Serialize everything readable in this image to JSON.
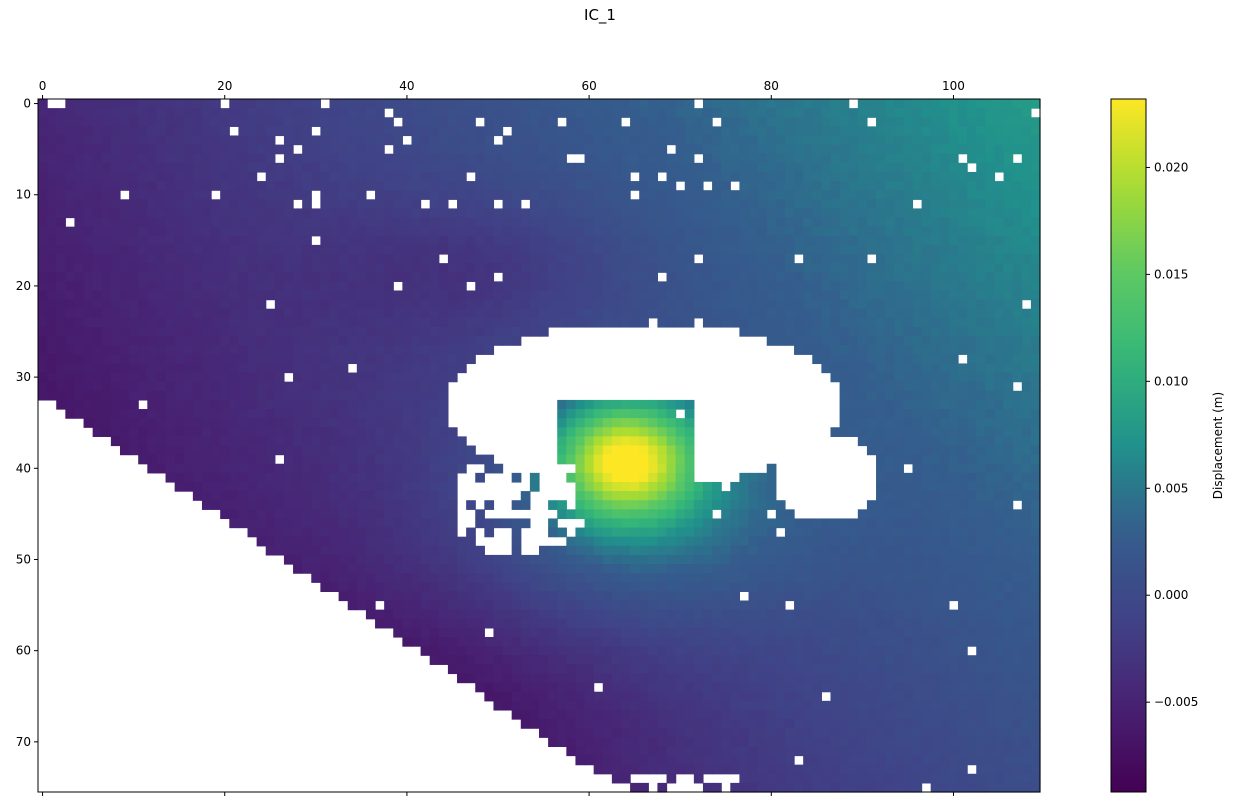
{
  "chart_data": {
    "type": "heatmap",
    "title": "IC_1",
    "xlabel": "",
    "ylabel": "",
    "x_range": [
      0,
      110
    ],
    "y_range": [
      0,
      76
    ],
    "x_ticks": [
      0,
      20,
      40,
      60,
      80,
      100
    ],
    "y_ticks": [
      0,
      10,
      20,
      30,
      40,
      50,
      60,
      70
    ],
    "x_tick_labels": [
      "0",
      "20",
      "40",
      "60",
      "80",
      "100"
    ],
    "y_tick_labels": [
      "0",
      "10",
      "20",
      "30",
      "40",
      "50",
      "60",
      "70"
    ],
    "x_axis_position": "top",
    "y_axis_inverted": true,
    "colormap": "viridis",
    "colorbar": {
      "label": "Displacement (m)",
      "range": [
        -0.0092,
        0.0232
      ],
      "ticks": [
        -0.005,
        0.0,
        0.005,
        0.01,
        0.015,
        0.02
      ],
      "tick_labels": [
        "−0.005",
        "0.000",
        "0.005",
        "0.010",
        "0.015",
        "0.020"
      ]
    },
    "field_description": {
      "min_value": -0.009,
      "max_value": 0.023,
      "peak_center": [
        64,
        39
      ],
      "masked_region": "lower-left triangle below a diagonal edge, plus a large blank region around the peak"
    }
  }
}
